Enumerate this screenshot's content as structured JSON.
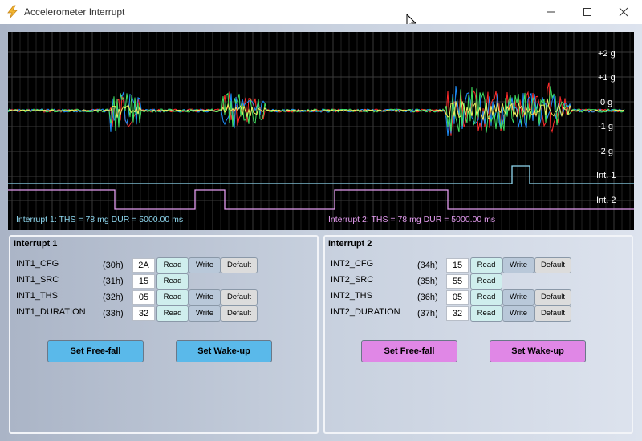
{
  "window": {
    "title": "Accelerometer Interrupt"
  },
  "colors": {
    "axis_x": "#ff2a2a",
    "axis_y": "#1e90ff",
    "axis_z": "#40e060",
    "aux": "#f0f060",
    "int1": "#8fd8f0",
    "int2": "#e49cf0",
    "btn_blue": "#5ab9ea",
    "btn_pink": "#e087e6"
  },
  "scope": {
    "y_labels": [
      "+2 g",
      "+1 g",
      "0 g",
      "-1 g",
      "-2 g"
    ],
    "int1_label": "Int. 1",
    "int2_label": "Int. 2",
    "int1_status": "Interrupt 1: THS = 78 mg  DUR = 5000.00 ms",
    "int2_status": "Interrupt 2: THS = 78 mg  DUR = 5000.00 ms"
  },
  "panel1": {
    "title": "Interrupt 1",
    "rows": [
      {
        "name": "INT1_CFG",
        "addr": "(30h)",
        "value": "2A"
      },
      {
        "name": "INT1_SRC",
        "addr": "(31h)",
        "value": "15"
      },
      {
        "name": "INT1_THS",
        "addr": "(32h)",
        "value": "05"
      },
      {
        "name": "INT1_DURATION",
        "addr": "(33h)",
        "value": "32"
      }
    ],
    "freefall": "Set Free-fall",
    "wakeup": "Set Wake-up"
  },
  "panel2": {
    "title": "Interrupt 2",
    "rows": [
      {
        "name": "INT2_CFG",
        "addr": "(34h)",
        "value": "15"
      },
      {
        "name": "INT2_SRC",
        "addr": "(35h)",
        "value": "55"
      },
      {
        "name": "INT2_THS",
        "addr": "(36h)",
        "value": "05"
      },
      {
        "name": "INT2_DURATION",
        "addr": "(37h)",
        "value": "32"
      }
    ],
    "freefall": "Set Free-fall",
    "wakeup": "Set Wake-up"
  },
  "buttons": {
    "read": "Read",
    "write": "Write",
    "default": "Default"
  }
}
